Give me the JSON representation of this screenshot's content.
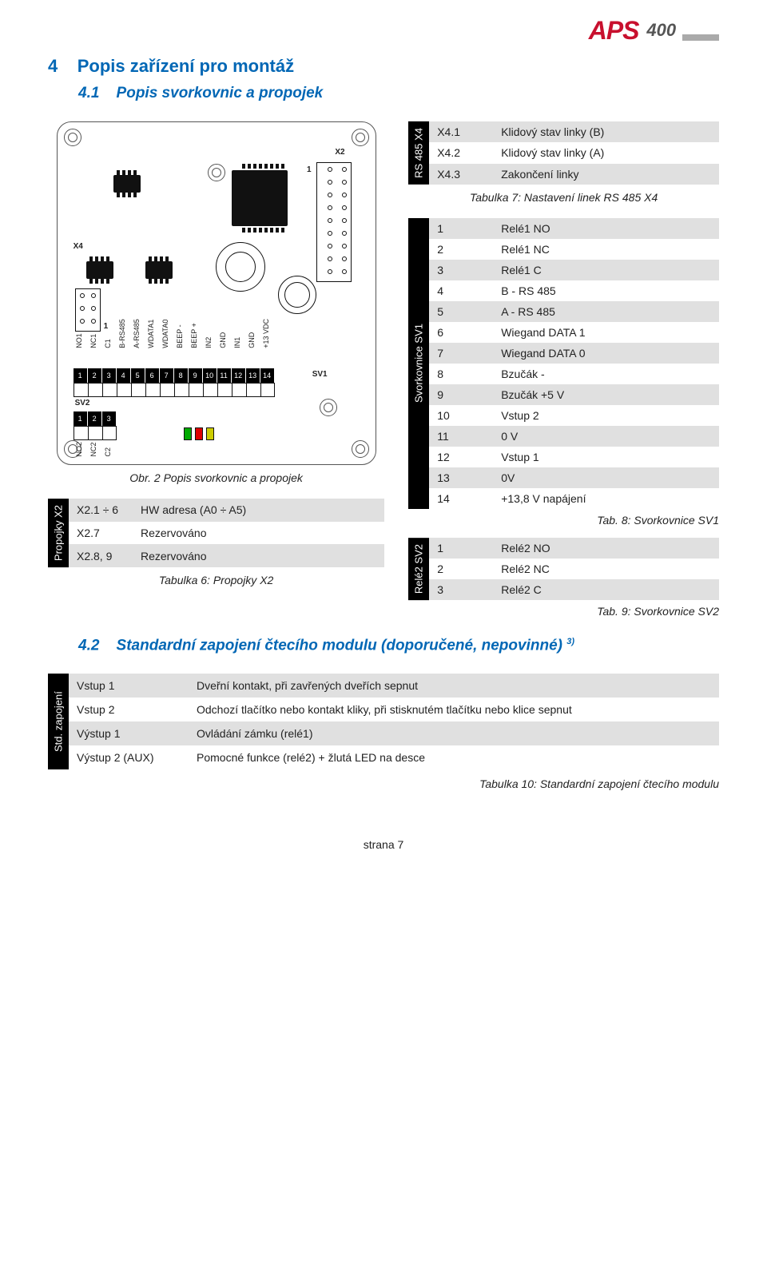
{
  "brand": {
    "name": "APS",
    "model": "400"
  },
  "heading": {
    "num": "4",
    "title": "Popis zařízení pro montáž"
  },
  "sub1": {
    "num": "4.1",
    "title": "Popis svorkovnic a propojek"
  },
  "tab7": {
    "vlabel": "RS 485 X4",
    "rows": [
      {
        "k": "X4.1",
        "v": "Klidový stav linky (B)"
      },
      {
        "k": "X4.2",
        "v": "Klidový stav linky (A)"
      },
      {
        "k": "X4.3",
        "v": "Zakončení linky"
      }
    ],
    "caption": "Tabulka 7: Nastavení linek RS 485 X4"
  },
  "fig2_caption": "Obr. 2 Popis svorkovnic a propojek",
  "tab6": {
    "vlabel": "Propojky X2",
    "rows": [
      {
        "k": "X2.1 ÷ 6",
        "v": "HW adresa (A0 ÷ A5)"
      },
      {
        "k": "X2.7",
        "v": "Rezervováno"
      },
      {
        "k": "X2.8, 9",
        "v": "Rezervováno"
      }
    ],
    "caption": "Tabulka 6: Propojky X2"
  },
  "tab8": {
    "vlabel": "Svorkovnice SV1",
    "rows": [
      {
        "k": "1",
        "v": "Relé1 NO"
      },
      {
        "k": "2",
        "v": "Relé1 NC"
      },
      {
        "k": "3",
        "v": "Relé1 C"
      },
      {
        "k": "4",
        "v": "B - RS 485"
      },
      {
        "k": "5",
        "v": "A - RS 485"
      },
      {
        "k": "6",
        "v": "Wiegand DATA 1"
      },
      {
        "k": "7",
        "v": "Wiegand DATA 0"
      },
      {
        "k": "8",
        "v": "Bzučák -"
      },
      {
        "k": "9",
        "v": "Bzučák +5 V"
      },
      {
        "k": "10",
        "v": "Vstup 2"
      },
      {
        "k": "11",
        "v": "0 V"
      },
      {
        "k": "12",
        "v": "Vstup 1"
      },
      {
        "k": "13",
        "v": "0V"
      },
      {
        "k": "14",
        "v": "+13,8 V napájení"
      }
    ],
    "caption": "Tab. 8: Svorkovnice SV1"
  },
  "tab9": {
    "vlabel": "Relé2 SV2",
    "rows": [
      {
        "k": "1",
        "v": "Relé2 NO"
      },
      {
        "k": "2",
        "v": "Relé2 NC"
      },
      {
        "k": "3",
        "v": "Relé2 C"
      }
    ],
    "caption": "Tab. 9: Svorkovnice SV2"
  },
  "sub2": {
    "num": "4.2",
    "title": "Standardní zapojení čtecího modulu (doporučené, nepovinné)",
    "note": "3)"
  },
  "tab10": {
    "vlabel": "Std. zapojení",
    "rows": [
      {
        "k": "Vstup 1",
        "v": "Dveřní kontakt, při zavřených dveřích sepnut"
      },
      {
        "k": "Vstup 2",
        "v": "Odchozí tlačítko nebo kontakt kliky, při stisknutém tlačítku nebo klice sepnut"
      },
      {
        "k": "Výstup 1",
        "v": "Ovládání zámku (relé1)"
      },
      {
        "k": "Výstup 2 (AUX)",
        "v": "Pomocné funkce (relé2) + žlutá LED na desce"
      }
    ],
    "caption": "Tabulka 10: Standardní zapojení čtecího modulu"
  },
  "footer": "strana 7",
  "pcb": {
    "x4": "X4",
    "x2": "X2",
    "sv1": "SV1",
    "sv2": "SV2",
    "one_bl": "1",
    "one_tr": "1",
    "term_main": [
      "1",
      "2",
      "3",
      "4",
      "5",
      "6",
      "7",
      "8",
      "9",
      "10",
      "11",
      "12",
      "13",
      "14"
    ],
    "term_sv2": [
      "1",
      "2",
      "3"
    ],
    "pins_labels": [
      "NO1",
      "NC1",
      "C1",
      "B-RS485",
      "A-RS485",
      "WDATA1",
      "WDATA0",
      "BEEP -",
      "BEEP +",
      "IN2",
      "GND",
      "IN1",
      "GND",
      "+13 VDC"
    ],
    "sv2_labels": [
      "NO2",
      "NC2",
      "C2"
    ],
    "led_colors": [
      "#0a0",
      "#d00",
      "#cc0"
    ]
  }
}
